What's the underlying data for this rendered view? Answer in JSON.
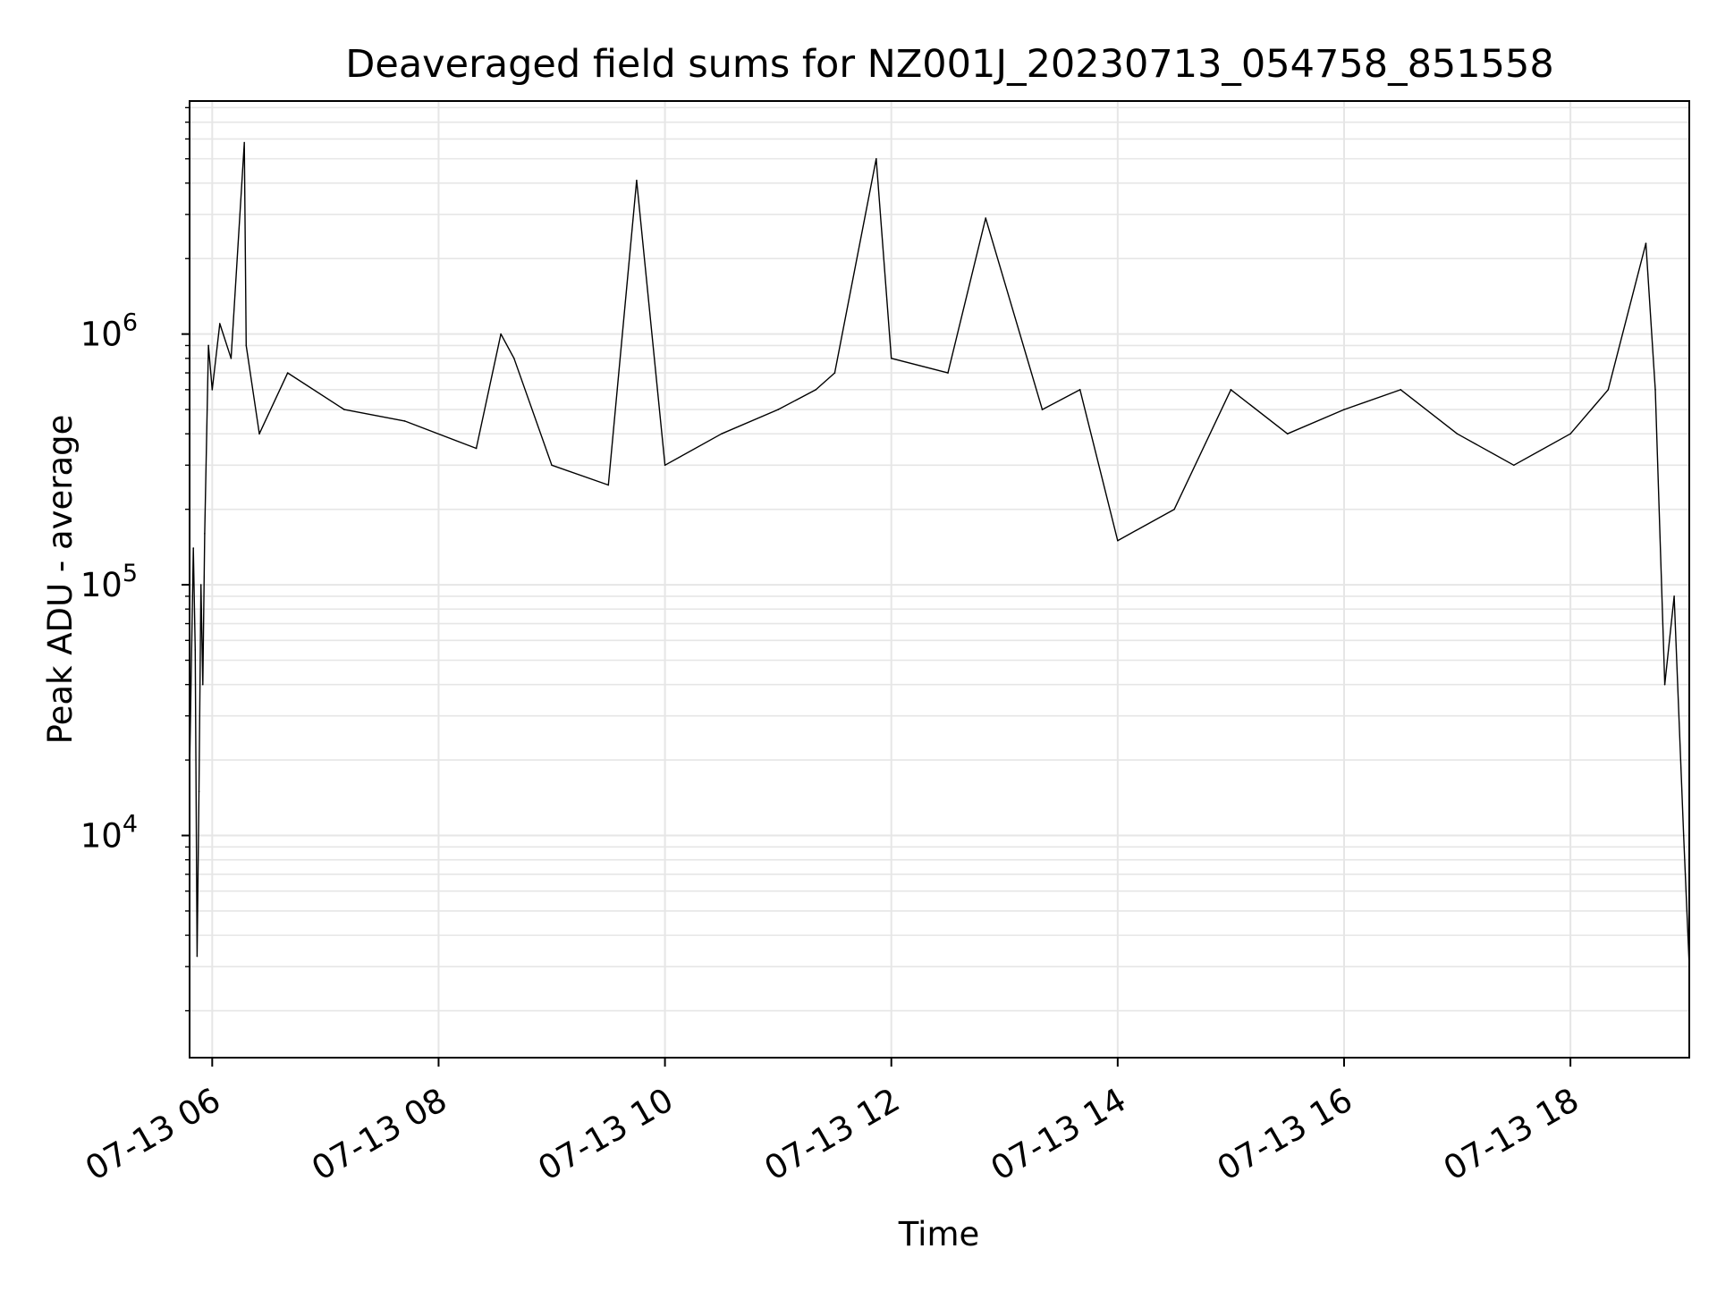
{
  "chart_data": {
    "type": "line",
    "title": "Deaveraged field sums for NZ001J_20230713_054758_851558",
    "xlabel": "Time",
    "ylabel": "Peak ADU - average",
    "x_ticks": [
      "07-13 06",
      "07-13 08",
      "07-13 10",
      "07-13 12",
      "07-13 14",
      "07-13 16",
      "07-13 18"
    ],
    "y_scale": "log",
    "y_ticks": [
      {
        "base": "10",
        "exp": "4"
      },
      {
        "base": "10",
        "exp": "5"
      },
      {
        "base": "10",
        "exp": "6"
      }
    ],
    "xlim": [
      "2023-07-13 05:48",
      "2023-07-13 19:03"
    ],
    "ylim": [
      1300,
      8500000
    ],
    "grid": true,
    "line_color": "#000000",
    "grid_color": "#e6e6e6",
    "series": [
      {
        "x": [
          "2023-07-13 05:48",
          "2023-07-13 05:50",
          "2023-07-13 05:51",
          "2023-07-13 05:52",
          "2023-07-13 05:53",
          "2023-07-13 05:54",
          "2023-07-13 05:55",
          "2023-07-13 05:56",
          "2023-07-13 05:58",
          "2023-07-13 06:00",
          "2023-07-13 06:04",
          "2023-07-13 06:10",
          "2023-07-13 06:17",
          "2023-07-13 06:18",
          "2023-07-13 06:25",
          "2023-07-13 06:40",
          "2023-07-13 07:10",
          "2023-07-13 07:42",
          "2023-07-13 08:20",
          "2023-07-13 08:33",
          "2023-07-13 08:40",
          "2023-07-13 09:00",
          "2023-07-13 09:30",
          "2023-07-13 09:45",
          "2023-07-13 10:00",
          "2023-07-13 10:30",
          "2023-07-13 11:00",
          "2023-07-13 11:20",
          "2023-07-13 11:30",
          "2023-07-13 11:52",
          "2023-07-13 12:00",
          "2023-07-13 12:30",
          "2023-07-13 12:50",
          "2023-07-13 13:20",
          "2023-07-13 13:40",
          "2023-07-13 14:00",
          "2023-07-13 14:30",
          "2023-07-13 15:00",
          "2023-07-13 15:30",
          "2023-07-13 16:00",
          "2023-07-13 16:30",
          "2023-07-13 17:00",
          "2023-07-13 17:30",
          "2023-07-13 18:00",
          "2023-07-13 18:20",
          "2023-07-13 18:40",
          "2023-07-13 18:45",
          "2023-07-13 18:50",
          "2023-07-13 18:55",
          "2023-07-13 19:00",
          "2023-07-13 19:03"
        ],
        "y": [
          18000,
          140000,
          55000,
          3300,
          15000,
          100000,
          40000,
          160000,
          900000,
          600000,
          1100000,
          800000,
          5800000,
          900000,
          400000,
          700000,
          500000,
          450000,
          350000,
          1000000,
          800000,
          300000,
          250000,
          4100000,
          300000,
          400000,
          500000,
          600000,
          700000,
          5000000,
          800000,
          700000,
          2900000,
          500000,
          600000,
          150000,
          200000,
          600000,
          400000,
          500000,
          600000,
          400000,
          300000,
          400000,
          600000,
          2300000,
          600000,
          40000,
          90000,
          10000,
          3000
        ]
      }
    ]
  }
}
